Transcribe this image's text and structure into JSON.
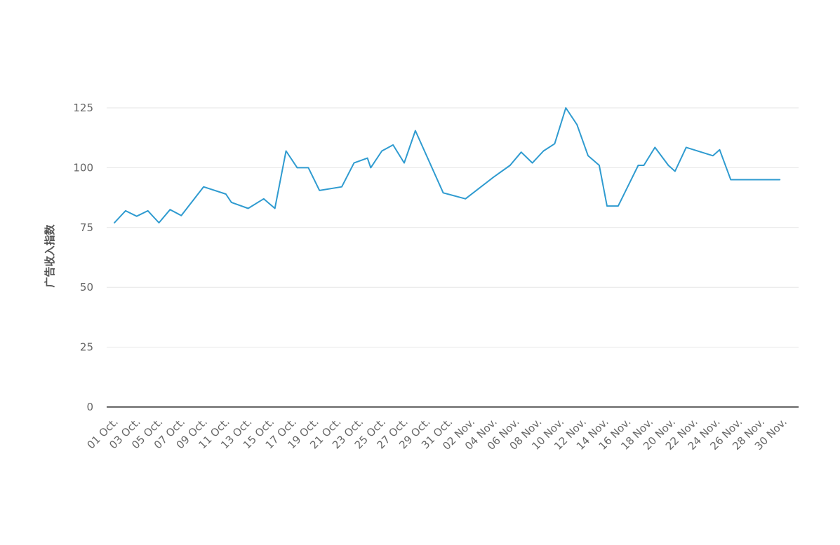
{
  "chart_data": {
    "type": "line",
    "title": "",
    "xlabel": "",
    "ylabel": "广告收入指数",
    "ylim": [
      0,
      125
    ],
    "y_ticks": [
      0,
      25,
      50,
      75,
      100,
      125
    ],
    "grid": true,
    "legend": "none",
    "x_tick_labels": [
      "01 Oct.",
      "03 Oct.",
      "05 Oct.",
      "07 Oct.",
      "09 Oct.",
      "11 Oct.",
      "13 Oct.",
      "15 Oct.",
      "17 Oct.",
      "19 Oct.",
      "21 Oct.",
      "23 Oct.",
      "25 Oct.",
      "27 Oct.",
      "29 Oct.",
      "31 Oct.",
      "02 Nov.",
      "04 Nov.",
      "06 Nov.",
      "08 Nov.",
      "10 Nov.",
      "12 Nov.",
      "14 Nov.",
      "16 Nov.",
      "18 Nov.",
      "20 Nov.",
      "22 Nov.",
      "24 Nov.",
      "26 Nov.",
      "28 Nov.",
      "30 Nov."
    ],
    "series": [
      {
        "color": "#2f9bd0",
        "x": [
          "01 Oct.",
          "02 Oct.",
          "03 Oct.",
          "04 Oct.",
          "05 Oct.",
          "06 Oct.",
          "07 Oct.",
          "09 Oct.",
          "11 Oct.",
          "12 Oct.",
          "13 Oct.",
          "14 Oct.",
          "15 Oct.",
          "16 Oct.",
          "17 Oct.",
          "18 Oct.",
          "19 Oct.",
          "21 Oct.",
          "22 Oct.",
          "23 Oct.",
          "23.5 Oct.",
          "24 Oct.",
          "25 Oct.",
          "26 Oct.",
          "27 Oct.",
          "28 Oct.",
          "30 Oct.",
          "01 Nov.",
          "03 Nov.",
          "04 Nov.",
          "05 Nov.",
          "06 Nov.",
          "07 Nov.",
          "08 Nov.",
          "09 Nov.",
          "10 Nov.",
          "11 Nov.",
          "12 Nov.",
          "13 Nov.",
          "14 Nov.",
          "15 Nov.",
          "16 Nov.",
          "17 Nov.",
          "18 Nov.",
          "19 Nov.",
          "21 Nov.",
          "22 Nov.",
          "22.5 Nov.",
          "23 Nov.",
          "24 Nov.",
          "25 Nov.",
          "26 Nov.",
          "27 Nov."
        ],
        "xi": [
          0,
          1,
          2,
          3,
          4,
          5,
          6,
          8,
          10,
          10.5,
          12,
          13.4,
          14.4,
          15.4,
          16.4,
          17.4,
          18.4,
          20.4,
          21.5,
          22.7,
          23,
          24,
          25,
          26,
          27,
          29.5,
          31.5,
          34,
          35.5,
          36.5,
          37.5,
          38.5,
          39.5,
          40.5,
          41.5,
          42.5,
          43.5,
          44.2,
          45.2,
          47,
          47.5,
          48.5,
          49.7,
          50.3,
          51.3,
          53.7,
          54.3,
          55.3,
          56,
          56.7,
          58,
          59,
          59.7
        ],
        "values": [
          77,
          82,
          79.7,
          82,
          77,
          82.5,
          80,
          92,
          89,
          85.5,
          83,
          87,
          83,
          107,
          100,
          100,
          90.5,
          92,
          102,
          104,
          100,
          107,
          109.5,
          102,
          115.5,
          89.5,
          87,
          96,
          101,
          106.5,
          102,
          107,
          110,
          125,
          118,
          105,
          101,
          84,
          84,
          101,
          101,
          108.5,
          101,
          98.5,
          108.5,
          105,
          107.5,
          95,
          95,
          95,
          95,
          95,
          95
        ]
      }
    ]
  }
}
